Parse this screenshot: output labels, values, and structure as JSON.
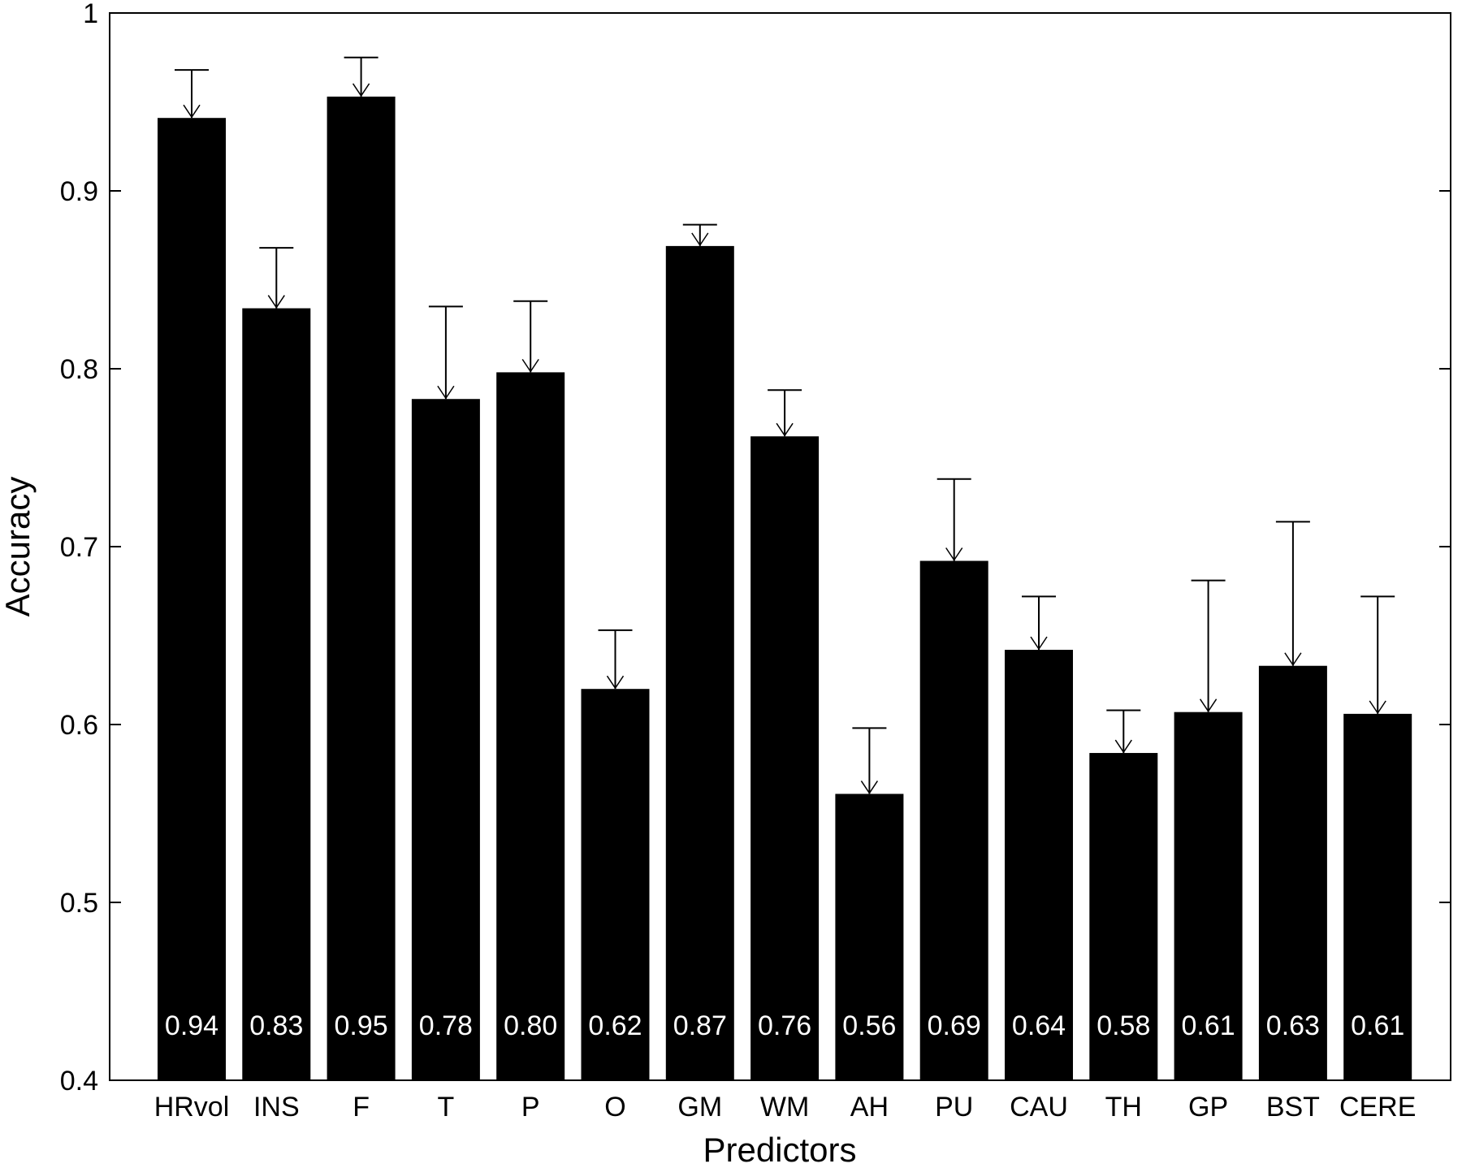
{
  "chart_data": {
    "type": "bar",
    "title": "",
    "xlabel": "Predictors",
    "ylabel": "Accuracy",
    "ylim": [
      0.4,
      1.0
    ],
    "yticks": [
      0.4,
      0.5,
      0.6,
      0.7,
      0.8,
      0.9,
      1.0
    ],
    "ytick_labels": [
      "0.4",
      "0.5",
      "0.6",
      "0.7",
      "0.8",
      "0.9",
      "1"
    ],
    "categories": [
      "HRvol",
      "INS",
      "F",
      "T",
      "P",
      "O",
      "GM",
      "WM",
      "AH",
      "PU",
      "CAU",
      "TH",
      "GP",
      "BST",
      "CERE"
    ],
    "values": [
      0.941,
      0.834,
      0.953,
      0.783,
      0.798,
      0.62,
      0.869,
      0.762,
      0.561,
      0.692,
      0.642,
      0.584,
      0.607,
      0.633,
      0.606
    ],
    "error_upper": [
      0.968,
      0.868,
      0.975,
      0.835,
      0.838,
      0.653,
      0.881,
      0.788,
      0.598,
      0.738,
      0.672,
      0.608,
      0.681,
      0.714,
      0.672
    ],
    "value_labels": [
      "0.94",
      "0.83",
      "0.95",
      "0.78",
      "0.80",
      "0.62",
      "0.87",
      "0.76",
      "0.56",
      "0.69",
      "0.64",
      "0.58",
      "0.61",
      "0.63",
      "0.61"
    ],
    "bar_color": "#000000",
    "label_color": "#ffffff",
    "grid": false,
    "legend": null
  }
}
